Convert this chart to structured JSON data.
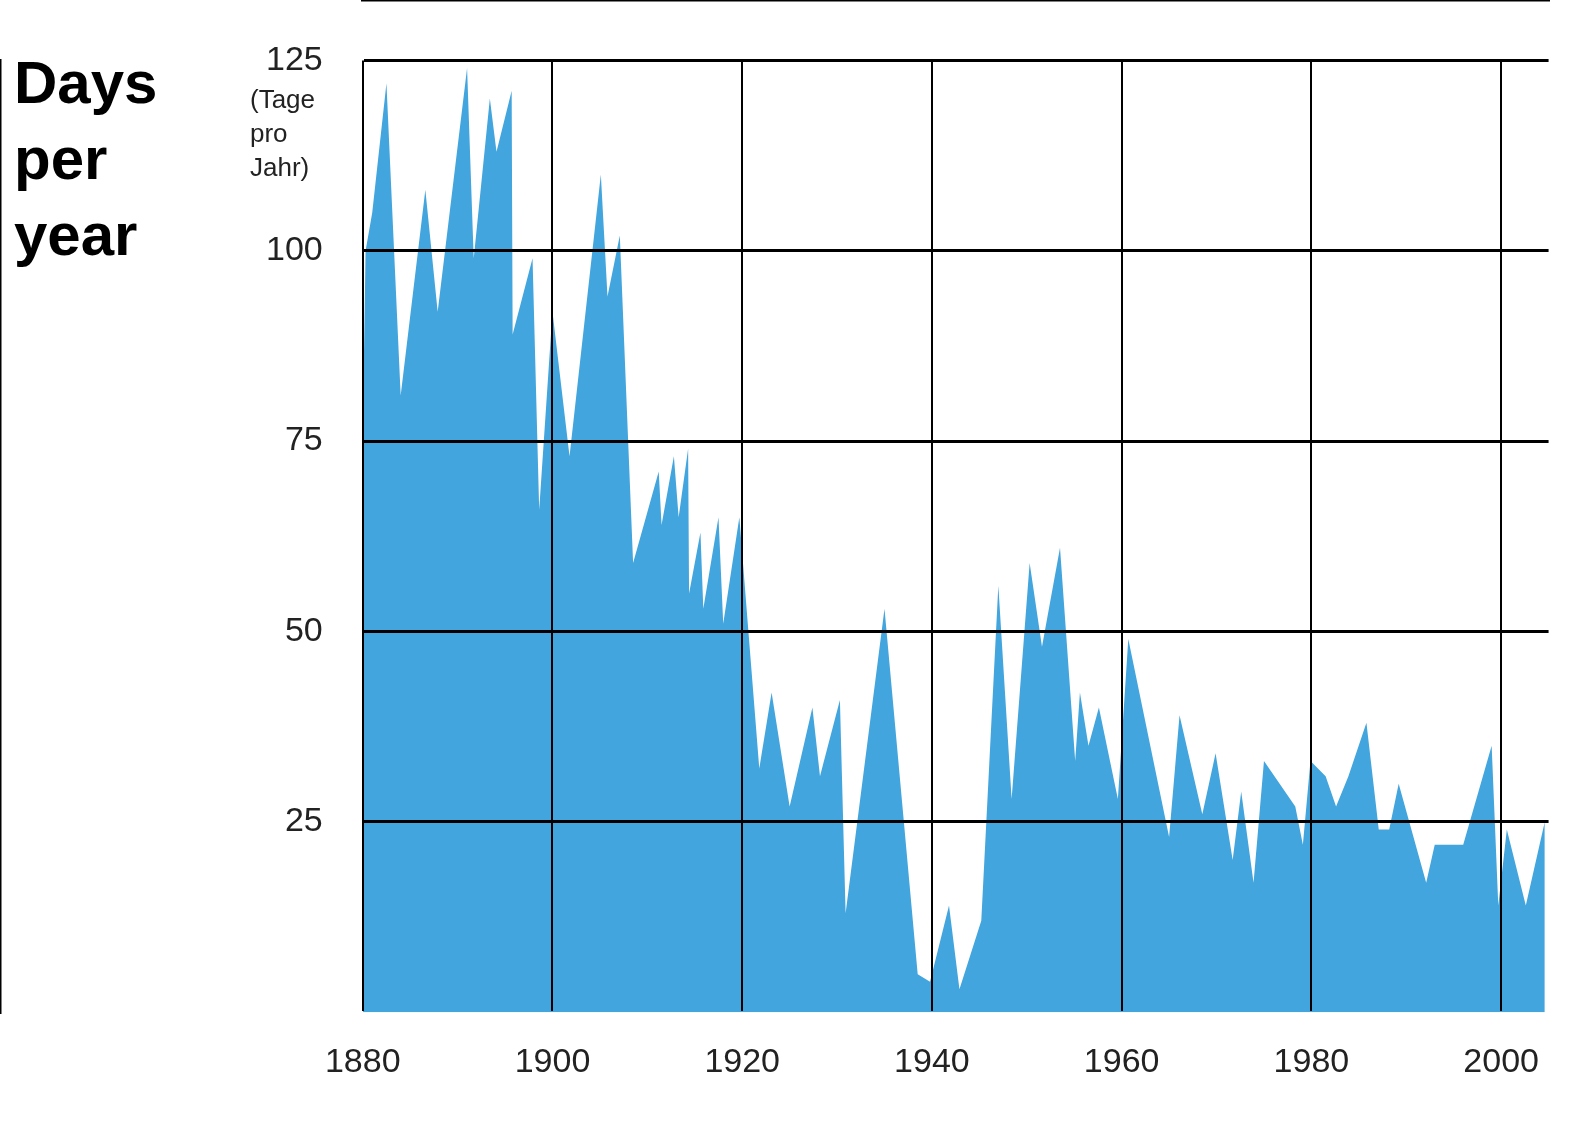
{
  "chart_data": {
    "type": "area",
    "ylabel": "Days per year",
    "annotations": [
      "(Tage pro Jahr)"
    ],
    "x": [
      1880,
      1880.3,
      1881,
      1882.5,
      1884,
      1886.6,
      1887.9,
      1891,
      1891.7,
      1893.4,
      1894.1,
      1895.7,
      1895.8,
      1897.9,
      1898.6,
      1900,
      1901.8,
      1905.1,
      1905.8,
      1907.1,
      1908.5,
      1911.2,
      1911.5,
      1912.8,
      1913.3,
      1914.3,
      1914.4,
      1915.6,
      1915.9,
      1917.5,
      1918,
      1919.7,
      1921.8,
      1923.1,
      1925,
      1927.4,
      1928.2,
      1930.3,
      1930.9,
      1935,
      1938.5,
      1939.8,
      1941.8,
      1942.9,
      1945.2,
      1947,
      1948.4,
      1950.3,
      1951.6,
      1953.5,
      1955.1,
      1955.6,
      1956.5,
      1957.6,
      1959.6,
      1960.7,
      1965,
      1966.1,
      1968.5,
      1969.9,
      1971.7,
      1972.6,
      1973.9,
      1975,
      1978.3,
      1979.1,
      1979.9,
      1981.5,
      1982.6,
      1983.9,
      1985.8,
      1987.1,
      1988.2,
      1989.2,
      1992.1,
      1993,
      1996,
      1999,
      1999.7,
      2000.6,
      2002.6,
      2004.6
    ],
    "series": [
      {
        "color": "#42a5de",
        "values": [
          76,
          100,
          105,
          122,
          81,
          108,
          92,
          124,
          99,
          120,
          113,
          121,
          89,
          99,
          66,
          92,
          73,
          110,
          94,
          102,
          59,
          71,
          64,
          73,
          65,
          74,
          55,
          63,
          53,
          65,
          51,
          65,
          32,
          42,
          27,
          40,
          31,
          41,
          13,
          53,
          5,
          4,
          14,
          3,
          12,
          56,
          28,
          59,
          48,
          61,
          33,
          42,
          35,
          40,
          28,
          49,
          23,
          39,
          26,
          34,
          20,
          29,
          17,
          33,
          27,
          22,
          33,
          31,
          27,
          31,
          38,
          24,
          24,
          30,
          17,
          22,
          22,
          35,
          14,
          24,
          14,
          25
        ]
      }
    ],
    "xlim": [
      1880,
      2005
    ],
    "xticks": [
      1880,
      1900,
      1920,
      1940,
      1960,
      1980,
      2000
    ],
    "ylim": [
      0,
      125
    ],
    "yticks": [
      25,
      50,
      75,
      100,
      125
    ],
    "grid": true
  }
}
